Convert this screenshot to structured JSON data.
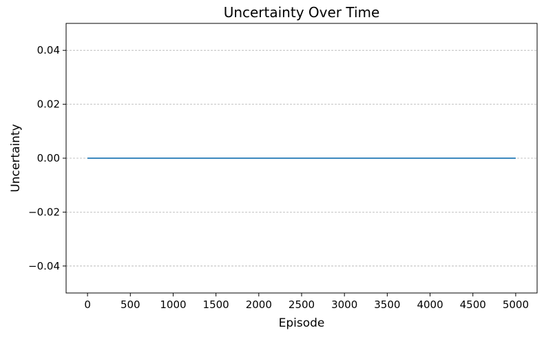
{
  "chart_data": {
    "type": "line",
    "title": "Uncertainty Over Time",
    "xlabel": "Episode",
    "ylabel": "Uncertainty",
    "xlim": [
      -250,
      5250
    ],
    "ylim": [
      -0.05,
      0.05
    ],
    "xticks": [
      0,
      500,
      1000,
      1500,
      2000,
      2500,
      3000,
      3500,
      4000,
      4500,
      5000
    ],
    "xtick_labels": [
      "0",
      "500",
      "1000",
      "1500",
      "2000",
      "2500",
      "3000",
      "3500",
      "4000",
      "4500",
      "5000"
    ],
    "yticks": [
      -0.04,
      -0.02,
      0.0,
      0.02,
      0.04
    ],
    "ytick_labels": [
      "−0.04",
      "−0.02",
      "0.00",
      "0.02",
      "0.04"
    ],
    "grid": "y-dashed",
    "series": [
      {
        "color": "#1f77b4",
        "x": [
          0,
          5000
        ],
        "y": [
          0.0,
          0.0
        ]
      }
    ]
  }
}
